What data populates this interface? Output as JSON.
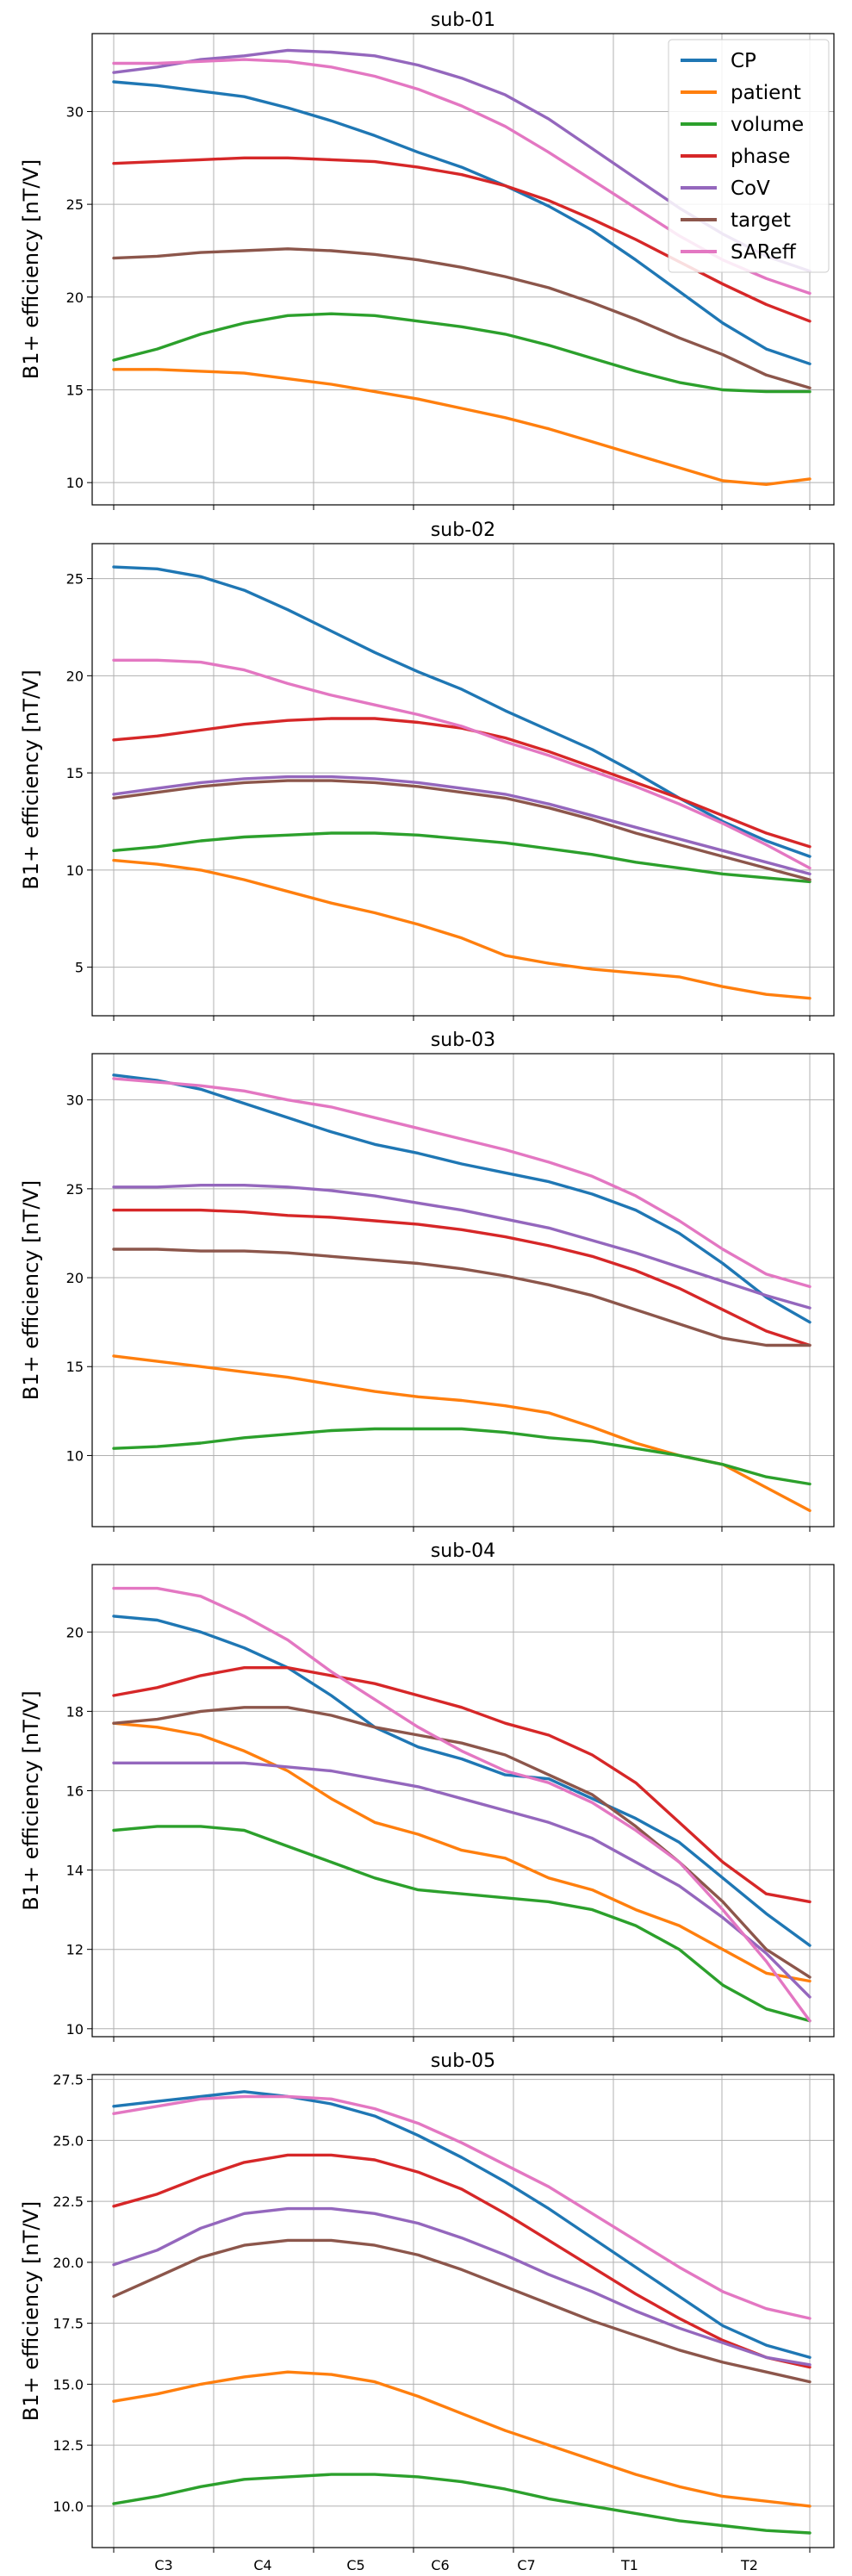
{
  "chart_data": [
    {
      "type": "line",
      "title": "sub-01",
      "ylabel": "B1+ efficiency [nT/V]",
      "ylim": [
        8.8,
        34.2
      ],
      "yticks": [
        10,
        15,
        20,
        25,
        30
      ],
      "ytick_labels": [
        "10",
        "15",
        "20",
        "25",
        "30"
      ],
      "grid": true,
      "legend": "upper right",
      "series": [
        {
          "name": "CP",
          "color": "#1f77b4",
          "values": [
            31.6,
            31.4,
            31.1,
            30.8,
            30.2,
            29.5,
            28.7,
            27.8,
            27.0,
            26.0,
            24.9,
            23.6,
            22.0,
            20.3,
            18.6,
            17.2,
            16.4
          ]
        },
        {
          "name": "patient",
          "color": "#ff7f0e",
          "values": [
            16.1,
            16.1,
            16.0,
            15.9,
            15.6,
            15.3,
            14.9,
            14.5,
            14.0,
            13.5,
            12.9,
            12.2,
            11.5,
            10.8,
            10.1,
            9.9,
            10.2
          ]
        },
        {
          "name": "volume",
          "color": "#2ca02c",
          "values": [
            16.6,
            17.2,
            18.0,
            18.6,
            19.0,
            19.1,
            19.0,
            18.7,
            18.4,
            18.0,
            17.4,
            16.7,
            16.0,
            15.4,
            15.0,
            14.9,
            14.9
          ]
        },
        {
          "name": "phase",
          "color": "#d62728",
          "values": [
            27.2,
            27.3,
            27.4,
            27.5,
            27.5,
            27.4,
            27.3,
            27.0,
            26.6,
            26.0,
            25.2,
            24.2,
            23.1,
            21.9,
            20.7,
            19.6,
            18.7
          ]
        },
        {
          "name": "CoV",
          "color": "#9467bd",
          "values": [
            32.1,
            32.4,
            32.8,
            33.0,
            33.3,
            33.2,
            33.0,
            32.5,
            31.8,
            30.9,
            29.6,
            28.0,
            26.4,
            24.8,
            23.4,
            22.2,
            21.4
          ]
        },
        {
          "name": "target",
          "color": "#8c564b",
          "values": [
            22.1,
            22.2,
            22.4,
            22.5,
            22.6,
            22.5,
            22.3,
            22.0,
            21.6,
            21.1,
            20.5,
            19.7,
            18.8,
            17.8,
            16.9,
            15.8,
            15.1
          ]
        },
        {
          "name": "SAReff",
          "color": "#e377c2",
          "values": [
            32.6,
            32.6,
            32.7,
            32.8,
            32.7,
            32.4,
            31.9,
            31.2,
            30.3,
            29.2,
            27.8,
            26.3,
            24.8,
            23.3,
            22.0,
            21.0,
            20.2
          ]
        }
      ]
    },
    {
      "type": "line",
      "title": "sub-02",
      "ylabel": "B1+ efficiency [nT/V]",
      "ylim": [
        2.5,
        26.8
      ],
      "yticks": [
        5,
        10,
        15,
        20,
        25
      ],
      "ytick_labels": [
        "5",
        "10",
        "15",
        "20",
        "25"
      ],
      "grid": true,
      "series": [
        {
          "name": "CP",
          "color": "#1f77b4",
          "values": [
            25.6,
            25.5,
            25.1,
            24.4,
            23.4,
            22.3,
            21.2,
            20.2,
            19.3,
            18.2,
            17.2,
            16.2,
            15.0,
            13.7,
            12.5,
            11.5,
            10.7
          ]
        },
        {
          "name": "patient",
          "color": "#ff7f0e",
          "values": [
            10.5,
            10.3,
            10.0,
            9.5,
            8.9,
            8.3,
            7.8,
            7.2,
            6.5,
            5.6,
            5.2,
            4.9,
            4.7,
            4.5,
            4.0,
            3.6,
            3.4
          ]
        },
        {
          "name": "volume",
          "color": "#2ca02c",
          "values": [
            11.0,
            11.2,
            11.5,
            11.7,
            11.8,
            11.9,
            11.9,
            11.8,
            11.6,
            11.4,
            11.1,
            10.8,
            10.4,
            10.1,
            9.8,
            9.6,
            9.4
          ]
        },
        {
          "name": "phase",
          "color": "#d62728",
          "values": [
            16.7,
            16.9,
            17.2,
            17.5,
            17.7,
            17.8,
            17.8,
            17.6,
            17.3,
            16.8,
            16.1,
            15.3,
            14.5,
            13.7,
            12.8,
            11.9,
            11.2
          ]
        },
        {
          "name": "CoV",
          "color": "#9467bd",
          "values": [
            13.9,
            14.2,
            14.5,
            14.7,
            14.8,
            14.8,
            14.7,
            14.5,
            14.2,
            13.9,
            13.4,
            12.8,
            12.2,
            11.6,
            11.0,
            10.4,
            9.8
          ]
        },
        {
          "name": "target",
          "color": "#8c564b",
          "values": [
            13.7,
            14.0,
            14.3,
            14.5,
            14.6,
            14.6,
            14.5,
            14.3,
            14.0,
            13.7,
            13.2,
            12.6,
            11.9,
            11.3,
            10.7,
            10.1,
            9.5
          ]
        },
        {
          "name": "SAReff",
          "color": "#e377c2",
          "values": [
            20.8,
            20.8,
            20.7,
            20.3,
            19.6,
            19.0,
            18.5,
            18.0,
            17.4,
            16.6,
            15.9,
            15.1,
            14.3,
            13.4,
            12.4,
            11.3,
            10.1
          ]
        }
      ]
    },
    {
      "type": "line",
      "title": "sub-03",
      "ylabel": "B1+ efficiency [nT/V]",
      "ylim": [
        6.0,
        32.6
      ],
      "yticks": [
        10,
        15,
        20,
        25,
        30
      ],
      "ytick_labels": [
        "10",
        "15",
        "20",
        "25",
        "30"
      ],
      "grid": true,
      "series": [
        {
          "name": "CP",
          "color": "#1f77b4",
          "values": [
            31.4,
            31.1,
            30.6,
            29.8,
            29.0,
            28.2,
            27.5,
            27.0,
            26.4,
            25.9,
            25.4,
            24.7,
            23.8,
            22.5,
            20.8,
            18.9,
            17.5
          ]
        },
        {
          "name": "patient",
          "color": "#ff7f0e",
          "values": [
            15.6,
            15.3,
            15.0,
            14.7,
            14.4,
            14.0,
            13.6,
            13.3,
            13.1,
            12.8,
            12.4,
            11.6,
            10.7,
            10.0,
            9.5,
            8.2,
            6.9
          ]
        },
        {
          "name": "volume",
          "color": "#2ca02c",
          "values": [
            10.4,
            10.5,
            10.7,
            11.0,
            11.2,
            11.4,
            11.5,
            11.5,
            11.5,
            11.3,
            11.0,
            10.8,
            10.4,
            10.0,
            9.5,
            8.8,
            8.4
          ]
        },
        {
          "name": "phase",
          "color": "#d62728",
          "values": [
            23.8,
            23.8,
            23.8,
            23.7,
            23.5,
            23.4,
            23.2,
            23.0,
            22.7,
            22.3,
            21.8,
            21.2,
            20.4,
            19.4,
            18.2,
            17.0,
            16.2
          ]
        },
        {
          "name": "CoV",
          "color": "#9467bd",
          "values": [
            25.1,
            25.1,
            25.2,
            25.2,
            25.1,
            24.9,
            24.6,
            24.2,
            23.8,
            23.3,
            22.8,
            22.1,
            21.4,
            20.6,
            19.8,
            19.0,
            18.3
          ]
        },
        {
          "name": "target",
          "color": "#8c564b",
          "values": [
            21.6,
            21.6,
            21.5,
            21.5,
            21.4,
            21.2,
            21.0,
            20.8,
            20.5,
            20.1,
            19.6,
            19.0,
            18.2,
            17.4,
            16.6,
            16.2,
            16.2
          ]
        },
        {
          "name": "SAReff",
          "color": "#e377c2",
          "values": [
            31.2,
            31.0,
            30.8,
            30.5,
            30.0,
            29.6,
            29.0,
            28.4,
            27.8,
            27.2,
            26.5,
            25.7,
            24.6,
            23.2,
            21.6,
            20.2,
            19.5
          ]
        }
      ]
    },
    {
      "type": "line",
      "title": "sub-04",
      "ylabel": "B1+ efficiency [nT/V]",
      "ylim": [
        9.8,
        21.7
      ],
      "yticks": [
        10,
        12,
        14,
        16,
        18,
        20
      ],
      "ytick_labels": [
        "10",
        "12",
        "14",
        "16",
        "18",
        "20"
      ],
      "grid": true,
      "series": [
        {
          "name": "CP",
          "color": "#1f77b4",
          "values": [
            20.4,
            20.3,
            20.0,
            19.6,
            19.1,
            18.4,
            17.6,
            17.1,
            16.8,
            16.4,
            16.3,
            15.8,
            15.3,
            14.7,
            13.8,
            12.9,
            12.1
          ]
        },
        {
          "name": "patient",
          "color": "#ff7f0e",
          "values": [
            17.7,
            17.6,
            17.4,
            17.0,
            16.5,
            15.8,
            15.2,
            14.9,
            14.5,
            14.3,
            13.8,
            13.5,
            13.0,
            12.6,
            12.0,
            11.4,
            11.2
          ]
        },
        {
          "name": "volume",
          "color": "#2ca02c",
          "values": [
            15.0,
            15.1,
            15.1,
            15.0,
            14.6,
            14.2,
            13.8,
            13.5,
            13.4,
            13.3,
            13.2,
            13.0,
            12.6,
            12.0,
            11.1,
            10.5,
            10.2
          ]
        },
        {
          "name": "phase",
          "color": "#d62728",
          "values": [
            18.4,
            18.6,
            18.9,
            19.1,
            19.1,
            18.9,
            18.7,
            18.4,
            18.1,
            17.7,
            17.4,
            16.9,
            16.2,
            15.2,
            14.2,
            13.4,
            13.2
          ]
        },
        {
          "name": "CoV",
          "color": "#9467bd",
          "values": [
            16.7,
            16.7,
            16.7,
            16.7,
            16.6,
            16.5,
            16.3,
            16.1,
            15.8,
            15.5,
            15.2,
            14.8,
            14.2,
            13.6,
            12.8,
            11.9,
            10.8
          ]
        },
        {
          "name": "target",
          "color": "#8c564b",
          "values": [
            17.7,
            17.8,
            18.0,
            18.1,
            18.1,
            17.9,
            17.6,
            17.4,
            17.2,
            16.9,
            16.4,
            15.9,
            15.1,
            14.2,
            13.2,
            12.0,
            11.3
          ]
        },
        {
          "name": "SAReff",
          "color": "#e377c2",
          "values": [
            21.1,
            21.1,
            20.9,
            20.4,
            19.8,
            19.0,
            18.3,
            17.6,
            17.0,
            16.5,
            16.2,
            15.7,
            15.0,
            14.2,
            13.0,
            11.7,
            10.2
          ]
        }
      ]
    },
    {
      "type": "line",
      "title": "sub-05",
      "ylabel": "B1+ efficiency [nT/V]",
      "ylim": [
        8.3,
        27.7
      ],
      "yticks": [
        10.0,
        12.5,
        15.0,
        17.5,
        20.0,
        22.5,
        25.0,
        27.5
      ],
      "ytick_labels": [
        "10.0",
        "12.5",
        "15.0",
        "17.5",
        "20.0",
        "22.5",
        "25.0",
        "27.5"
      ],
      "x_tick_labels": [
        "C3",
        "C4",
        "C5",
        "C6",
        "C7",
        "T1",
        "T2"
      ],
      "grid": true,
      "series": [
        {
          "name": "CP",
          "color": "#1f77b4",
          "values": [
            26.4,
            26.6,
            26.8,
            27.0,
            26.8,
            26.5,
            26.0,
            25.2,
            24.3,
            23.3,
            22.2,
            21.0,
            19.8,
            18.6,
            17.4,
            16.6,
            16.1
          ]
        },
        {
          "name": "patient",
          "color": "#ff7f0e",
          "values": [
            14.3,
            14.6,
            15.0,
            15.3,
            15.5,
            15.4,
            15.1,
            14.5,
            13.8,
            13.1,
            12.5,
            11.9,
            11.3,
            10.8,
            10.4,
            10.2,
            10.0
          ]
        },
        {
          "name": "volume",
          "color": "#2ca02c",
          "values": [
            10.1,
            10.4,
            10.8,
            11.1,
            11.2,
            11.3,
            11.3,
            11.2,
            11.0,
            10.7,
            10.3,
            10.0,
            9.7,
            9.4,
            9.2,
            9.0,
            8.9
          ]
        },
        {
          "name": "phase",
          "color": "#d62728",
          "values": [
            22.3,
            22.8,
            23.5,
            24.1,
            24.4,
            24.4,
            24.2,
            23.7,
            23.0,
            22.0,
            20.9,
            19.8,
            18.7,
            17.7,
            16.8,
            16.1,
            15.7
          ]
        },
        {
          "name": "CoV",
          "color": "#9467bd",
          "values": [
            19.9,
            20.5,
            21.4,
            22.0,
            22.2,
            22.2,
            22.0,
            21.6,
            21.0,
            20.3,
            19.5,
            18.8,
            18.0,
            17.3,
            16.7,
            16.1,
            15.8
          ]
        },
        {
          "name": "target",
          "color": "#8c564b",
          "values": [
            18.6,
            19.4,
            20.2,
            20.7,
            20.9,
            20.9,
            20.7,
            20.3,
            19.7,
            19.0,
            18.3,
            17.6,
            17.0,
            16.4,
            15.9,
            15.5,
            15.1
          ]
        },
        {
          "name": "SAReff",
          "color": "#e377c2",
          "values": [
            26.1,
            26.4,
            26.7,
            26.8,
            26.8,
            26.7,
            26.3,
            25.7,
            24.9,
            24.0,
            23.1,
            22.0,
            20.9,
            19.8,
            18.8,
            18.1,
            17.7
          ]
        }
      ]
    }
  ]
}
